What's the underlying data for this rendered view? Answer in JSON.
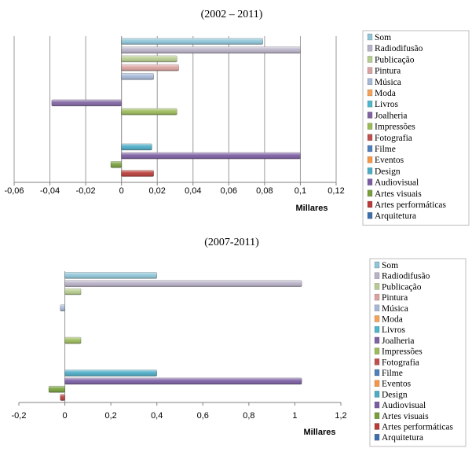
{
  "chart_data": [
    {
      "type": "bar",
      "orientation": "horizontal",
      "title": "(2002 – 2011)",
      "unit_label": "Millares",
      "xlim": [
        -0.06,
        0.12
      ],
      "ticks": [
        -0.06,
        -0.04,
        -0.02,
        0,
        0.02,
        0.04,
        0.06,
        0.08,
        0.1,
        0.12
      ],
      "tick_labels": [
        "-0,06",
        "-0,04",
        "-0,02",
        "0",
        "0,02",
        "0,04",
        "0,06",
        "0,08",
        "0,1",
        "0,12"
      ],
      "grid": true,
      "legend_position": "right",
      "categories": [
        "Som",
        "Radiodifusão",
        "Publicação",
        "Pintura",
        "Música",
        "Moda",
        "Livros",
        "Joalheria",
        "Impressões",
        "Fotografia",
        "Filme",
        "Eventos",
        "Design",
        "Audiovisual",
        "Artes visuais",
        "Artes performáticas",
        "Arquitetura"
      ],
      "colors": [
        "#8fc6d8",
        "#b9b2c8",
        "#b6cd8f",
        "#dba3a0",
        "#a5b8d8",
        "#f6a35a",
        "#4fb7cc",
        "#8064a2",
        "#9bbb59",
        "#c0504d",
        "#4f81bd",
        "#f79646",
        "#4bacc6",
        "#7b5da3",
        "#77a03a",
        "#b93c38",
        "#3e6fad"
      ],
      "values": [
        0.079,
        0.1,
        0.031,
        0.032,
        0.018,
        0,
        0,
        -0.039,
        0.031,
        0,
        0,
        0,
        0.017,
        0.1,
        -0.006,
        0.018,
        0
      ]
    },
    {
      "type": "bar",
      "orientation": "horizontal",
      "title": "(2007-2011)",
      "unit_label": "Millares",
      "xlim": [
        -0.2,
        1.2
      ],
      "ticks": [
        -0.2,
        0,
        0.2,
        0.4,
        0.6,
        0.8,
        1,
        1.2
      ],
      "tick_labels": [
        "-0,2",
        "0",
        "0,2",
        "0,4",
        "0,6",
        "0,8",
        "1",
        "1,2"
      ],
      "grid": false,
      "legend_position": "right",
      "categories": [
        "Som",
        "Radiodifusão",
        "Publicação",
        "Pintura",
        "Música",
        "Moda",
        "Livros",
        "Joalheria",
        "Impressões",
        "Fotografia",
        "Filme",
        "Eventos",
        "Design",
        "Audiovisual",
        "Artes visuais",
        "Artes performáticas",
        "Arquitetura"
      ],
      "colors": [
        "#8fc6d8",
        "#b9b2c8",
        "#b6cd8f",
        "#dba3a0",
        "#a5b8d8",
        "#f6a35a",
        "#4fb7cc",
        "#8064a2",
        "#9bbb59",
        "#c0504d",
        "#4f81bd",
        "#f79646",
        "#4bacc6",
        "#7b5da3",
        "#77a03a",
        "#b93c38",
        "#3e6fad"
      ],
      "values": [
        0.4,
        1.03,
        0.07,
        0,
        -0.02,
        0,
        0,
        0,
        0.07,
        0,
        0,
        0,
        0.4,
        1.03,
        -0.07,
        -0.02,
        0
      ]
    }
  ]
}
